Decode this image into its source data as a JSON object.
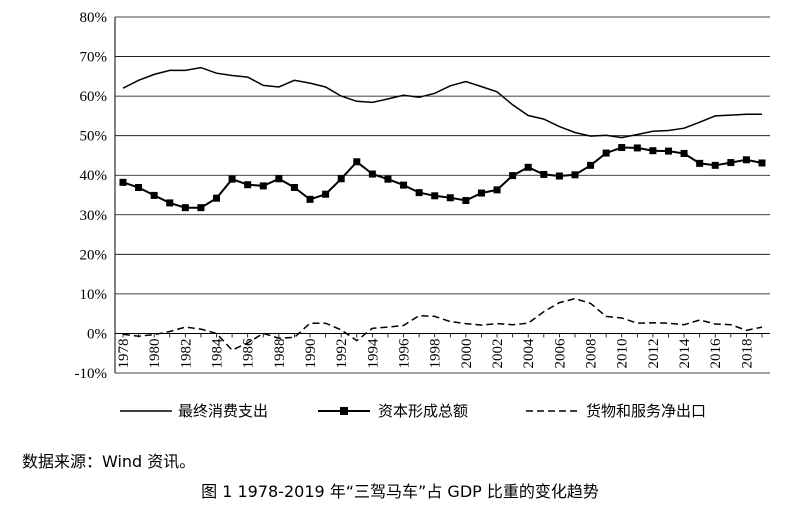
{
  "chart_data": {
    "type": "line",
    "title": "图 1 1978-2019 年“三驾马车”占 GDP 比重的变化趋势",
    "source": "数据来源：Wind 资讯。",
    "xlabel": "",
    "ylabel": "",
    "ylim": [
      -10,
      80
    ],
    "yticks": [
      "-10%",
      "0%",
      "10%",
      "20%",
      "30%",
      "40%",
      "50%",
      "60%",
      "70%",
      "80%"
    ],
    "ytick_values": [
      -10,
      0,
      10,
      20,
      30,
      40,
      50,
      60,
      70,
      80
    ],
    "x": [
      1978,
      1979,
      1980,
      1981,
      1982,
      1983,
      1984,
      1985,
      1986,
      1987,
      1988,
      1989,
      1990,
      1991,
      1992,
      1993,
      1994,
      1995,
      1996,
      1997,
      1998,
      1999,
      2000,
      2001,
      2002,
      2003,
      2004,
      2005,
      2006,
      2007,
      2008,
      2009,
      2010,
      2011,
      2012,
      2013,
      2014,
      2015,
      2016,
      2017,
      2018,
      2019
    ],
    "xticks": [
      "1978",
      "1980",
      "1982",
      "1984",
      "1986",
      "1988",
      "1990",
      "1992",
      "1994",
      "1996",
      "1998",
      "2000",
      "2002",
      "2004",
      "2006",
      "2008",
      "2010",
      "2012",
      "2014",
      "2016",
      "2018"
    ],
    "legend_position": "bottom",
    "series": [
      {
        "name": "最终消费支出",
        "style": "solid",
        "values": [
          62,
          64,
          65.5,
          66.5,
          66.5,
          67.2,
          65.8,
          65.2,
          64.8,
          62.7,
          62.3,
          64,
          63.3,
          62.3,
          60,
          58.7,
          58.4,
          59.3,
          60.2,
          59.7,
          60.7,
          62.6,
          63.7,
          62.4,
          61.1,
          57.8,
          55.1,
          54.2,
          52.3,
          50.8,
          49.9,
          50.1,
          49.5,
          50.3,
          51.1,
          51.3,
          51.9,
          53.4,
          55,
          55.2,
          55.4,
          55.4
        ]
      },
      {
        "name": "资本形成总额",
        "style": "solid-square",
        "values": [
          38.2,
          36.9,
          34.9,
          33,
          31.8,
          31.8,
          34.2,
          39,
          37.6,
          37.3,
          39.1,
          36.9,
          33.9,
          35.2,
          39.1,
          43.4,
          40.3,
          39,
          37.5,
          35.6,
          34.8,
          34.3,
          33.6,
          35.5,
          36.3,
          39.9,
          42,
          40.2,
          39.8,
          40.1,
          42.5,
          45.6,
          47,
          46.9,
          46.2,
          46.1,
          45.5,
          43,
          42.5,
          43.2,
          43.9,
          43.1
        ]
      },
      {
        "name": "货物和服务净出口",
        "style": "dashed",
        "values": [
          -0.2,
          -0.7,
          -0.3,
          0.5,
          1.6,
          1.1,
          0,
          -4.2,
          -2.4,
          0,
          -1.2,
          -1,
          2.6,
          2.6,
          0.9,
          -1.8,
          1.3,
          1.6,
          2,
          4.5,
          4.3,
          3,
          2.5,
          2.1,
          2.5,
          2.2,
          2.6,
          5.5,
          7.8,
          8.8,
          7.6,
          4.3,
          3.9,
          2.6,
          2.7,
          2.6,
          2.2,
          3.4,
          2.4,
          2.2,
          0.8,
          1.6
        ]
      }
    ]
  }
}
